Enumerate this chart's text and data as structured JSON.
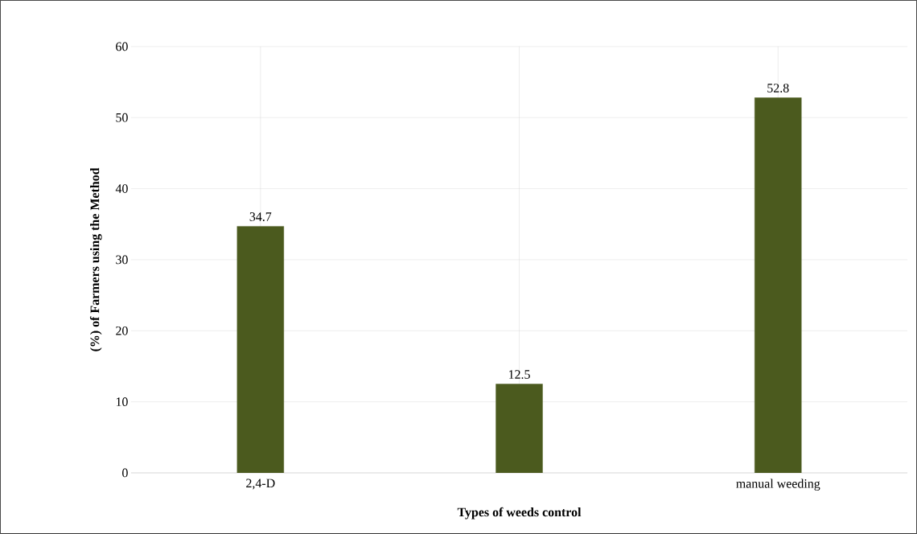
{
  "chart_data": {
    "type": "bar",
    "xlabel": "Types of weeds control",
    "ylabel": "(%) of Farmers using the Method",
    "categories": [
      "2,4-D",
      null,
      "manual weeding"
    ],
    "values": [
      34.7,
      12.5,
      52.8
    ],
    "color": "#4b5a1e",
    "data_labels": true,
    "ylim": [
      0,
      60
    ],
    "yticks": [
      0,
      10,
      20,
      30,
      40,
      50,
      60
    ],
    "grid": true
  }
}
